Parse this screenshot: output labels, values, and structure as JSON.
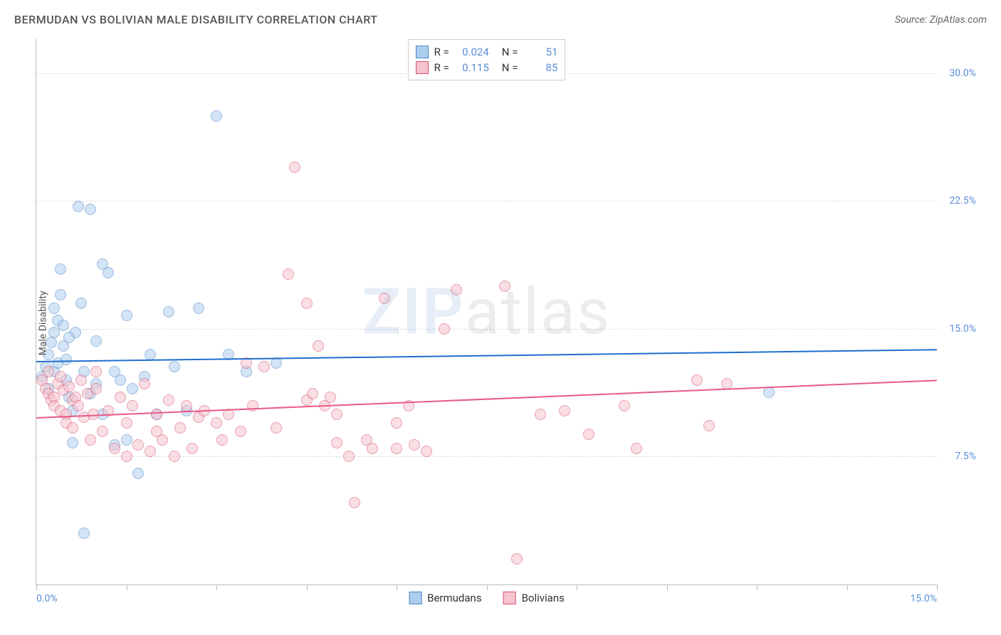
{
  "header": {
    "title": "BERMUDAN VS BOLIVIAN MALE DISABILITY CORRELATION CHART",
    "source": "Source: ZipAtlas.com"
  },
  "watermark": {
    "zip": "ZIP",
    "atlas": "atlas"
  },
  "chart": {
    "type": "scatter",
    "ylabel": "Male Disability",
    "background_color": "#ffffff",
    "grid_color": "#dddddd",
    "axis_color": "#bbbbbb",
    "xlim": [
      0,
      15
    ],
    "ylim": [
      0,
      32
    ],
    "x_tick_positions": [
      0,
      1.5,
      3.0,
      4.5,
      6.0,
      7.5,
      9.0,
      10.5,
      12.0,
      13.5,
      15.0
    ],
    "x_tick_labels": {
      "0": "0.0%",
      "15": "15.0%"
    },
    "y_grid_positions": [
      7.5,
      15.0,
      22.5,
      30.0
    ],
    "y_tick_labels": {
      "7.5": "7.5%",
      "15.0": "15.0%",
      "22.5": "22.5%",
      "30.0": "30.0%"
    },
    "tick_label_color": "#5a8fd6",
    "tick_label_fontsize": 14,
    "marker_radius": 8,
    "marker_opacity": 0.55,
    "series": [
      {
        "id": "bermudans",
        "label": "Bermudans",
        "fill_color": "#aeceee",
        "stroke_color": "#4f86c6",
        "R": "0.024",
        "N": "51",
        "trend": {
          "y_at_xmin": 13.1,
          "y_at_xmax": 13.8,
          "color": "#1f6fd0",
          "width": 2
        },
        "points": [
          [
            0.1,
            12.2
          ],
          [
            0.15,
            12.8
          ],
          [
            0.2,
            11.5
          ],
          [
            0.2,
            13.5
          ],
          [
            0.25,
            14.2
          ],
          [
            0.3,
            14.8
          ],
          [
            0.3,
            16.2
          ],
          [
            0.35,
            15.5
          ],
          [
            0.4,
            17.0
          ],
          [
            0.4,
            18.5
          ],
          [
            0.45,
            14.0
          ],
          [
            0.5,
            12.0
          ],
          [
            0.5,
            13.2
          ],
          [
            0.55,
            11.0
          ],
          [
            0.6,
            10.2
          ],
          [
            0.6,
            8.3
          ],
          [
            0.65,
            14.8
          ],
          [
            0.7,
            22.2
          ],
          [
            0.75,
            16.5
          ],
          [
            0.8,
            12.5
          ],
          [
            0.9,
            22.0
          ],
          [
            1.0,
            14.3
          ],
          [
            1.0,
            11.8
          ],
          [
            1.1,
            18.8
          ],
          [
            1.2,
            18.3
          ],
          [
            1.3,
            8.2
          ],
          [
            1.4,
            12.0
          ],
          [
            1.5,
            8.5
          ],
          [
            1.5,
            15.8
          ],
          [
            1.6,
            11.5
          ],
          [
            1.7,
            6.5
          ],
          [
            1.8,
            12.2
          ],
          [
            1.9,
            13.5
          ],
          [
            2.0,
            10.0
          ],
          [
            2.2,
            16.0
          ],
          [
            2.3,
            12.8
          ],
          [
            2.5,
            10.2
          ],
          [
            2.7,
            16.2
          ],
          [
            3.0,
            27.5
          ],
          [
            3.2,
            13.5
          ],
          [
            3.5,
            12.5
          ],
          [
            4.0,
            13.0
          ],
          [
            0.3,
            12.5
          ],
          [
            0.35,
            13.0
          ],
          [
            0.45,
            15.2
          ],
          [
            0.55,
            14.5
          ],
          [
            0.8,
            3.0
          ],
          [
            0.9,
            11.2
          ],
          [
            1.1,
            10.0
          ],
          [
            1.3,
            12.5
          ],
          [
            12.2,
            11.3
          ]
        ]
      },
      {
        "id": "bolivians",
        "label": "Bolivians",
        "fill_color": "#f5c4ce",
        "stroke_color": "#d94f70",
        "R": "0.115",
        "N": "85",
        "trend": {
          "y_at_xmin": 9.8,
          "y_at_xmax": 12.0,
          "color": "#e85a8a",
          "width": 2
        },
        "points": [
          [
            0.1,
            12.0
          ],
          [
            0.15,
            11.5
          ],
          [
            0.2,
            12.5
          ],
          [
            0.2,
            11.2
          ],
          [
            0.25,
            10.8
          ],
          [
            0.3,
            11.0
          ],
          [
            0.3,
            10.5
          ],
          [
            0.35,
            11.8
          ],
          [
            0.4,
            10.2
          ],
          [
            0.4,
            12.2
          ],
          [
            0.45,
            11.4
          ],
          [
            0.5,
            10.0
          ],
          [
            0.5,
            9.5
          ],
          [
            0.55,
            11.6
          ],
          [
            0.6,
            10.8
          ],
          [
            0.6,
            9.2
          ],
          [
            0.65,
            11.0
          ],
          [
            0.7,
            10.5
          ],
          [
            0.75,
            12.0
          ],
          [
            0.8,
            9.8
          ],
          [
            0.85,
            11.2
          ],
          [
            0.9,
            8.5
          ],
          [
            0.95,
            10.0
          ],
          [
            1.0,
            11.5
          ],
          [
            1.0,
            12.5
          ],
          [
            1.1,
            9.0
          ],
          [
            1.2,
            10.2
          ],
          [
            1.3,
            8.0
          ],
          [
            1.4,
            11.0
          ],
          [
            1.5,
            7.5
          ],
          [
            1.5,
            9.5
          ],
          [
            1.6,
            10.5
          ],
          [
            1.7,
            8.2
          ],
          [
            1.8,
            11.8
          ],
          [
            1.9,
            7.8
          ],
          [
            2.0,
            9.0
          ],
          [
            2.0,
            10.0
          ],
          [
            2.1,
            8.5
          ],
          [
            2.2,
            10.8
          ],
          [
            2.3,
            7.5
          ],
          [
            2.4,
            9.2
          ],
          [
            2.5,
            10.5
          ],
          [
            2.6,
            8.0
          ],
          [
            2.7,
            9.8
          ],
          [
            2.8,
            10.2
          ],
          [
            3.0,
            9.5
          ],
          [
            3.1,
            8.5
          ],
          [
            3.2,
            10.0
          ],
          [
            3.4,
            9.0
          ],
          [
            3.5,
            13.0
          ],
          [
            3.6,
            10.5
          ],
          [
            3.8,
            12.8
          ],
          [
            4.0,
            9.2
          ],
          [
            4.2,
            18.2
          ],
          [
            4.3,
            24.5
          ],
          [
            4.5,
            16.5
          ],
          [
            4.5,
            10.8
          ],
          [
            4.7,
            14.0
          ],
          [
            4.8,
            10.5
          ],
          [
            4.9,
            11.0
          ],
          [
            5.0,
            8.3
          ],
          [
            5.0,
            10.0
          ],
          [
            5.2,
            7.5
          ],
          [
            5.3,
            4.8
          ],
          [
            5.5,
            8.5
          ],
          [
            5.6,
            8.0
          ],
          [
            5.8,
            16.8
          ],
          [
            6.0,
            8.0
          ],
          [
            6.2,
            10.5
          ],
          [
            6.3,
            8.2
          ],
          [
            6.5,
            7.8
          ],
          [
            6.8,
            15.0
          ],
          [
            7.0,
            17.3
          ],
          [
            7.8,
            17.5
          ],
          [
            8.0,
            1.5
          ],
          [
            8.4,
            10.0
          ],
          [
            8.8,
            10.2
          ],
          [
            9.2,
            8.8
          ],
          [
            9.8,
            10.5
          ],
          [
            10.0,
            8.0
          ],
          [
            11.0,
            12.0
          ],
          [
            11.2,
            9.3
          ],
          [
            11.5,
            11.8
          ],
          [
            6.0,
            9.5
          ],
          [
            4.6,
            11.2
          ]
        ]
      }
    ]
  },
  "legend_top": {
    "r_label": "R =",
    "n_label": "N ="
  }
}
